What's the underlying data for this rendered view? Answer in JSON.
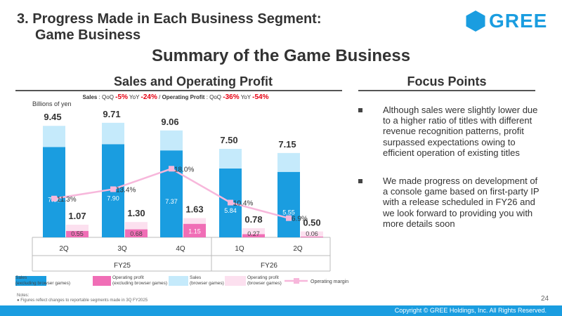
{
  "header": {
    "section_title_line1": "3. Progress Made in Each Business Segment:",
    "section_title_line2": "Game Business",
    "logo_text": "GREE",
    "main_title": "Summary of the Game Business"
  },
  "left_panel": {
    "heading": "Sales and Operating Profit",
    "subheading": {
      "sales_label": "Sales",
      "sales_qoq_label": ": QoQ ",
      "sales_qoq": "-5%",
      "sales_yoy_label": " YoY ",
      "sales_yoy": "-24%",
      "sep": " / ",
      "op_label": "Operating Profit",
      "op_qoq_label": ": QoQ ",
      "op_qoq": "-36%",
      "op_yoy_label": " YoY ",
      "op_yoy": "-54%"
    }
  },
  "right_panel": {
    "heading": "Focus Points",
    "points": [
      "Although sales were slightly lower due to a higher ratio of titles with different revenue recognition patterns, profit surpassed expectations owing to efficient operation of existing titles",
      "We made progress on development of a console game based on first-party IP with a release scheduled in FY26 and we look forward to providing you with more details soon"
    ]
  },
  "chart_data": {
    "type": "bar",
    "unit_label": "Billions of yen",
    "categories": [
      "2Q",
      "3Q",
      "4Q",
      "1Q",
      "2Q"
    ],
    "fiscal_years": [
      {
        "label": "FY25",
        "categories": [
          "2Q",
          "3Q",
          "4Q"
        ]
      },
      {
        "label": "FY26",
        "categories": [
          "1Q",
          "2Q"
        ]
      }
    ],
    "sales_totals": [
      "9.45",
      "9.71",
      "9.06",
      "7.50",
      "7.15"
    ],
    "op_totals": [
      "1.07",
      "1.30",
      "1.63",
      "0.78",
      "0.50"
    ],
    "series": [
      {
        "name": "Sales\n(excluding browser games)",
        "color": "#1a9de0",
        "values": [
          7.66,
          7.9,
          7.37,
          5.84,
          5.55
        ],
        "labels": [
          "7.66",
          "7.90",
          "7.37",
          "5.84",
          "5.55"
        ]
      },
      {
        "name": "Sales\n(browser games)",
        "color": "#c5eafb",
        "values": [
          1.79,
          1.81,
          1.69,
          1.66,
          1.6
        ]
      },
      {
        "name": "Operating profit\n(excluding browser games)",
        "color": "#f06eb6",
        "values": [
          0.55,
          0.68,
          1.15,
          0.27,
          0.06
        ],
        "labels": [
          "0.55",
          "0.68",
          "1.15",
          "0.27",
          "0.06"
        ]
      },
      {
        "name": "Operating profit\n(browser games)",
        "color": "#fce0ef",
        "values": [
          0.52,
          0.62,
          0.48,
          0.51,
          0.44
        ]
      },
      {
        "name": "Operating margin",
        "color": "#f7b7db",
        "type": "line",
        "values": [
          11.3,
          13.4,
          18.0,
          10.4,
          6.9
        ],
        "labels": [
          "11.3%",
          "13.4%",
          "18.0%",
          "10.4%",
          "6.9%"
        ]
      }
    ]
  },
  "footer": {
    "notes_title": "Notes:",
    "note": "Figures reflect changes to reportable segments made in 3Q FY2025",
    "page_number": "24",
    "copyright": "Copyright © GREE Holdings, Inc. All Rights Reserved."
  }
}
